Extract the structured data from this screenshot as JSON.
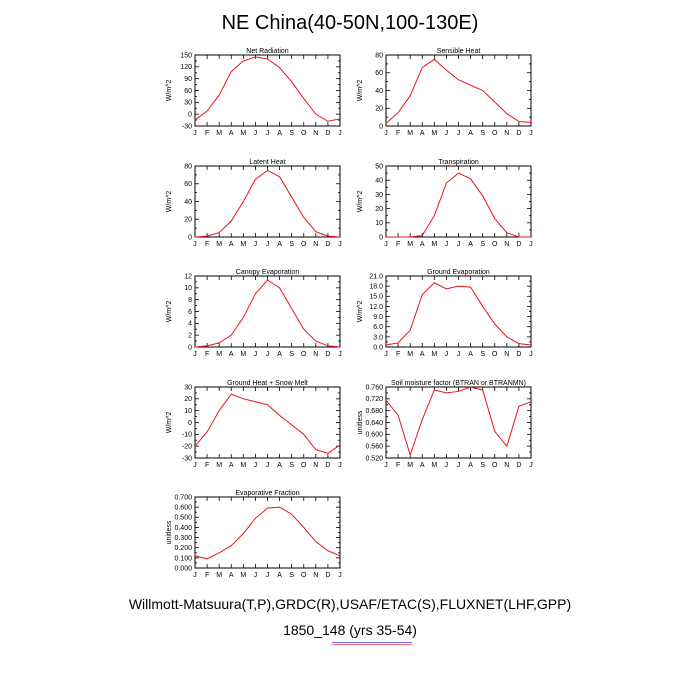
{
  "title": "NE China(40-50N,100-130E)",
  "footer": {
    "line1": "Willmott-Matsuura(T,P),GRDC(R),USAF/ETAC(S),FLUXNET(LHF,GPP)",
    "line2": "1850_148 (yrs 35-54)"
  },
  "colors": {
    "series": "#e8141b",
    "axis": "#000000",
    "underline_blue": "#6b6bff",
    "underline_red": "#ff6b6b"
  },
  "chart_data": [
    {
      "type": "line",
      "title": "Net Radiation",
      "ylabel": "W/m^2",
      "x": [
        "J",
        "F",
        "M",
        "A",
        "M",
        "J",
        "J",
        "A",
        "S",
        "O",
        "N",
        "D",
        "J"
      ],
      "ylim": [
        -30,
        150
      ],
      "yticks": [
        -30,
        -15,
        0,
        15,
        30,
        45,
        60,
        75,
        90,
        105,
        120,
        135,
        150
      ],
      "series": [
        {
          "values": [
            -15,
            8,
            48,
            108,
            135,
            145,
            140,
            118,
            82,
            40,
            0,
            -18,
            -12
          ]
        }
      ]
    },
    {
      "type": "line",
      "title": "Sensible Heat",
      "ylabel": "W/m^2",
      "x": [
        "J",
        "F",
        "M",
        "A",
        "M",
        "J",
        "J",
        "A",
        "S",
        "O",
        "N",
        "D",
        "J"
      ],
      "ylim": [
        0,
        80
      ],
      "yticks": [
        0,
        10,
        20,
        30,
        40,
        50,
        60,
        70,
        80
      ],
      "series": [
        {
          "values": [
            3,
            15,
            34,
            66,
            75,
            63,
            52,
            46,
            40,
            27,
            14,
            5,
            4
          ]
        }
      ]
    },
    {
      "type": "line",
      "title": "Latent Heat",
      "ylabel": "W/m^2",
      "x": [
        "J",
        "F",
        "M",
        "A",
        "M",
        "J",
        "J",
        "A",
        "S",
        "O",
        "N",
        "D",
        "J"
      ],
      "ylim": [
        0,
        80
      ],
      "yticks": [
        0,
        10,
        20,
        30,
        40,
        50,
        60,
        70,
        80
      ],
      "series": [
        {
          "values": [
            0,
            1,
            5,
            18,
            40,
            65,
            75,
            68,
            45,
            22,
            6,
            1,
            0
          ]
        }
      ]
    },
    {
      "type": "line",
      "title": "Transpiration",
      "ylabel": "W/m^2",
      "x": [
        "J",
        "F",
        "M",
        "A",
        "M",
        "J",
        "J",
        "A",
        "S",
        "O",
        "N",
        "D",
        "J"
      ],
      "ylim": [
        0,
        50
      ],
      "yticks": [
        0,
        5,
        10,
        15,
        20,
        25,
        30,
        35,
        40,
        45,
        50
      ],
      "series": [
        {
          "values": [
            0,
            0,
            0,
            1,
            15,
            38,
            45,
            41,
            29,
            13,
            3,
            0,
            0
          ]
        }
      ]
    },
    {
      "type": "line",
      "title": "Canopy Evaporation",
      "ylabel": "W/m^2",
      "x": [
        "J",
        "F",
        "M",
        "A",
        "M",
        "J",
        "J",
        "A",
        "S",
        "O",
        "N",
        "D",
        "J"
      ],
      "ylim": [
        0,
        12
      ],
      "yticks": [
        0,
        1,
        2,
        3,
        4,
        5,
        6,
        7,
        8,
        9,
        10,
        11,
        12
      ],
      "series": [
        {
          "values": [
            0,
            0.2,
            0.7,
            2,
            5,
            9,
            11.3,
            10,
            6.5,
            3,
            1,
            0.2,
            0
          ]
        }
      ]
    },
    {
      "type": "line",
      "title": "Ground Evaporation",
      "ylabel": "W/m^2",
      "x": [
        "J",
        "F",
        "M",
        "A",
        "M",
        "J",
        "J",
        "A",
        "S",
        "O",
        "N",
        "D",
        "J"
      ],
      "ylim": [
        0,
        21
      ],
      "yticks": [
        0,
        1.5,
        3,
        4.5,
        6,
        7.5,
        9,
        10.5,
        12,
        13.5,
        15,
        16.5,
        18,
        19.5,
        21
      ],
      "series": [
        {
          "values": [
            0.6,
            1.2,
            5,
            15.5,
            19,
            17.2,
            18,
            17.7,
            12,
            6.8,
            3,
            1,
            0.6
          ]
        }
      ]
    },
    {
      "type": "line",
      "title": "Ground Heat + Snow Melt",
      "ylabel": "W/m^2",
      "x": [
        "J",
        "F",
        "M",
        "A",
        "M",
        "J",
        "J",
        "A",
        "S",
        "O",
        "N",
        "D",
        "J"
      ],
      "ylim": [
        -30,
        30
      ],
      "yticks": [
        -30,
        -25,
        -20,
        -15,
        -10,
        -5,
        0,
        5,
        10,
        15,
        20,
        25,
        30
      ],
      "series": [
        {
          "values": [
            -20,
            -8,
            10,
            24,
            20,
            17.5,
            15,
            6,
            -2,
            -10,
            -23,
            -26,
            -19
          ]
        }
      ]
    },
    {
      "type": "line",
      "title": "Soil moisture factor (BTRAN or BTRANMN)",
      "ylabel": "unitless",
      "x": [
        "J",
        "F",
        "M",
        "A",
        "M",
        "J",
        "J",
        "A",
        "S",
        "O",
        "N",
        "D",
        "J"
      ],
      "ylim": [
        0.52,
        0.76
      ],
      "yticks": [
        0.52,
        0.54,
        0.56,
        0.58,
        0.6,
        0.62,
        0.64,
        0.66,
        0.68,
        0.7,
        0.72,
        0.74,
        0.76
      ],
      "series": [
        {
          "values": [
            0.715,
            0.665,
            0.53,
            0.65,
            0.75,
            0.74,
            0.745,
            0.76,
            0.75,
            0.61,
            0.56,
            0.695,
            0.71
          ]
        }
      ]
    },
    {
      "type": "line",
      "title": "Evaporative Fraction",
      "ylabel": "unitless",
      "x": [
        "J",
        "F",
        "M",
        "A",
        "M",
        "J",
        "J",
        "A",
        "S",
        "O",
        "N",
        "D",
        "J"
      ],
      "ylim": [
        0,
        0.7
      ],
      "yticks": [
        0,
        0.05,
        0.1,
        0.15,
        0.2,
        0.25,
        0.3,
        0.35,
        0.4,
        0.45,
        0.5,
        0.55,
        0.6,
        0.65,
        0.7
      ],
      "series": [
        {
          "values": [
            0.12,
            0.09,
            0.15,
            0.22,
            0.34,
            0.49,
            0.59,
            0.6,
            0.53,
            0.4,
            0.26,
            0.17,
            0.12
          ]
        }
      ]
    }
  ]
}
